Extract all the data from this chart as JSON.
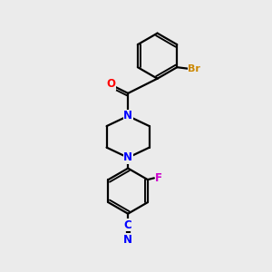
{
  "bg_color": "#ebebeb",
  "line_color": "#000000",
  "bond_width": 1.6,
  "atom_colors": {
    "O": "#ff0000",
    "N": "#0000ff",
    "Br": "#cc8800",
    "F": "#cc00cc",
    "C_nitrile": "#0000ff",
    "N_nitrile": "#0000ff"
  },
  "font_size": 8.5
}
